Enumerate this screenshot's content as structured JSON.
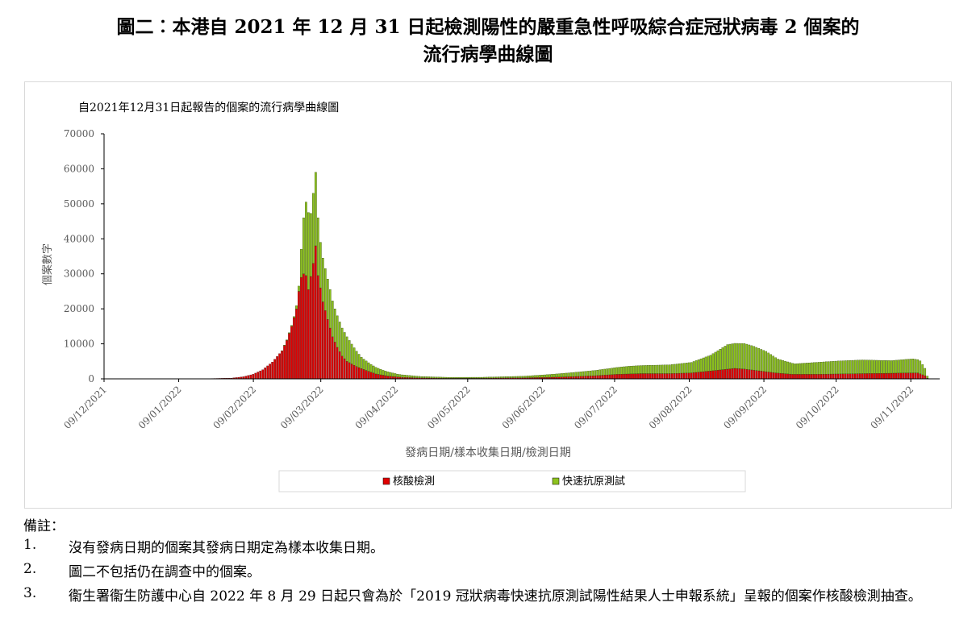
{
  "title": {
    "line1": "圖二︰本港自 2021 年 12 月 31 日起檢測陽性的嚴重急性呼吸綜合症冠狀病毒 2 個案的",
    "line2": "流行病學曲線圖"
  },
  "chart_data": {
    "type": "bar",
    "stacked": true,
    "title": "自2021年12月31日起報告的個案的流行病學曲線圖",
    "xlabel": "發病日期/樣本收集日期/檢測日期",
    "ylabel": "個案數字",
    "ylim": [
      0,
      70000
    ],
    "yticks": [
      0,
      10000,
      20000,
      30000,
      40000,
      50000,
      60000,
      70000
    ],
    "xlim": [
      "2021-12-09",
      "2022-11-21"
    ],
    "xticks": [
      "09/12/2021",
      "09/01/2022",
      "09/02/2022",
      "09/03/2022",
      "09/04/2022",
      "09/05/2022",
      "09/06/2022",
      "09/07/2022",
      "09/08/2022",
      "09/09/2022",
      "09/10/2022",
      "09/11/2022"
    ],
    "bin": "daily",
    "grid": false,
    "legend_position": "bottom",
    "series": [
      {
        "name": "核酸檢測",
        "color": "#e00000",
        "points": [
          [
            "2021-12-31",
            0
          ],
          [
            "2022-01-20",
            40
          ],
          [
            "2022-01-31",
            200
          ],
          [
            "2022-02-05",
            600
          ],
          [
            "2022-02-09",
            1300
          ],
          [
            "2022-02-13",
            2600
          ],
          [
            "2022-02-17",
            4800
          ],
          [
            "2022-02-21",
            8000
          ],
          [
            "2022-02-23",
            11000
          ],
          [
            "2022-02-25",
            15000
          ],
          [
            "2022-02-27",
            20000
          ],
          [
            "2022-02-28",
            25000
          ],
          [
            "2022-03-01",
            29000
          ],
          [
            "2022-03-02",
            30000
          ],
          [
            "2022-03-03",
            29500
          ],
          [
            "2022-03-04",
            25500
          ],
          [
            "2022-03-06",
            33000
          ],
          [
            "2022-03-07",
            38000
          ],
          [
            "2022-03-08",
            29500
          ],
          [
            "2022-03-09",
            26000
          ],
          [
            "2022-03-10",
            22000
          ],
          [
            "2022-03-12",
            17000
          ],
          [
            "2022-03-14",
            12000
          ],
          [
            "2022-03-16",
            9000
          ],
          [
            "2022-03-18",
            6500
          ],
          [
            "2022-03-20",
            5000
          ],
          [
            "2022-03-24",
            3500
          ],
          [
            "2022-03-28",
            2400
          ],
          [
            "2022-04-01",
            1400
          ],
          [
            "2022-04-06",
            800
          ],
          [
            "2022-04-12",
            420
          ],
          [
            "2022-04-20",
            260
          ],
          [
            "2022-05-01",
            180
          ],
          [
            "2022-05-15",
            200
          ],
          [
            "2022-06-01",
            300
          ],
          [
            "2022-06-10",
            400
          ],
          [
            "2022-06-20",
            600
          ],
          [
            "2022-07-01",
            900
          ],
          [
            "2022-07-10",
            1300
          ],
          [
            "2022-07-20",
            1500
          ],
          [
            "2022-08-01",
            1500
          ],
          [
            "2022-08-10",
            1700
          ],
          [
            "2022-08-20",
            2400
          ],
          [
            "2022-08-28",
            3000
          ],
          [
            "2022-09-01",
            2800
          ],
          [
            "2022-09-07",
            2300
          ],
          [
            "2022-09-14",
            1700
          ],
          [
            "2022-09-21",
            1300
          ],
          [
            "2022-10-01",
            1300
          ],
          [
            "2022-10-10",
            1400
          ],
          [
            "2022-10-20",
            1500
          ],
          [
            "2022-11-01",
            1600
          ],
          [
            "2022-11-08",
            1700
          ],
          [
            "2022-11-12",
            1700
          ],
          [
            "2022-11-15",
            900
          ],
          [
            "2022-11-16",
            200
          ]
        ]
      },
      {
        "name": "快速抗原測試",
        "color": "#8dc21f",
        "points": [
          [
            "2022-02-20",
            0
          ],
          [
            "2022-02-26",
            300
          ],
          [
            "2022-02-28",
            1500
          ],
          [
            "2022-03-01",
            8000
          ],
          [
            "2022-03-02",
            16000
          ],
          [
            "2022-03-03",
            21000
          ],
          [
            "2022-03-04",
            22000
          ],
          [
            "2022-03-05",
            18000
          ],
          [
            "2022-03-06",
            20000
          ],
          [
            "2022-03-07",
            21000
          ],
          [
            "2022-03-08",
            16500
          ],
          [
            "2022-03-09",
            13000
          ],
          [
            "2022-03-11",
            12000
          ],
          [
            "2022-03-13",
            11000
          ],
          [
            "2022-03-15",
            9500
          ],
          [
            "2022-03-17",
            8500
          ],
          [
            "2022-03-20",
            7000
          ],
          [
            "2022-03-23",
            5000
          ],
          [
            "2022-03-26",
            3200
          ],
          [
            "2022-03-30",
            2200
          ],
          [
            "2022-04-04",
            1400
          ],
          [
            "2022-04-10",
            800
          ],
          [
            "2022-04-20",
            400
          ],
          [
            "2022-05-01",
            250
          ],
          [
            "2022-05-15",
            250
          ],
          [
            "2022-06-01",
            450
          ],
          [
            "2022-06-15",
            900
          ],
          [
            "2022-07-01",
            1500
          ],
          [
            "2022-07-15",
            2200
          ],
          [
            "2022-08-01",
            2500
          ],
          [
            "2022-08-10",
            3000
          ],
          [
            "2022-08-18",
            4500
          ],
          [
            "2022-08-25",
            7000
          ],
          [
            "2022-09-01",
            7300
          ],
          [
            "2022-09-05",
            6800
          ],
          [
            "2022-09-10",
            5800
          ],
          [
            "2022-09-15",
            4000
          ],
          [
            "2022-09-22",
            3000
          ],
          [
            "2022-10-01",
            3400
          ],
          [
            "2022-10-10",
            3700
          ],
          [
            "2022-10-20",
            3900
          ],
          [
            "2022-11-01",
            3600
          ],
          [
            "2022-11-10",
            4000
          ],
          [
            "2022-11-13",
            3700
          ],
          [
            "2022-11-15",
            2100
          ],
          [
            "2022-11-16",
            600
          ]
        ]
      }
    ]
  },
  "notes": {
    "heading": "備註：",
    "items": [
      {
        "num": "1.",
        "text": "沒有發病日期的個案其發病日期定為樣本收集日期。"
      },
      {
        "num": "2.",
        "text": "圖二不包括仍在調查中的個案。"
      },
      {
        "num": "3.",
        "text": "衞生署衞生防護中心自 2022 年 8 月 29 日起只會為於「2019 冠狀病毒快速抗原測試陽性結果人士申報系統」呈報的個案作核酸檢測抽查。"
      }
    ]
  }
}
